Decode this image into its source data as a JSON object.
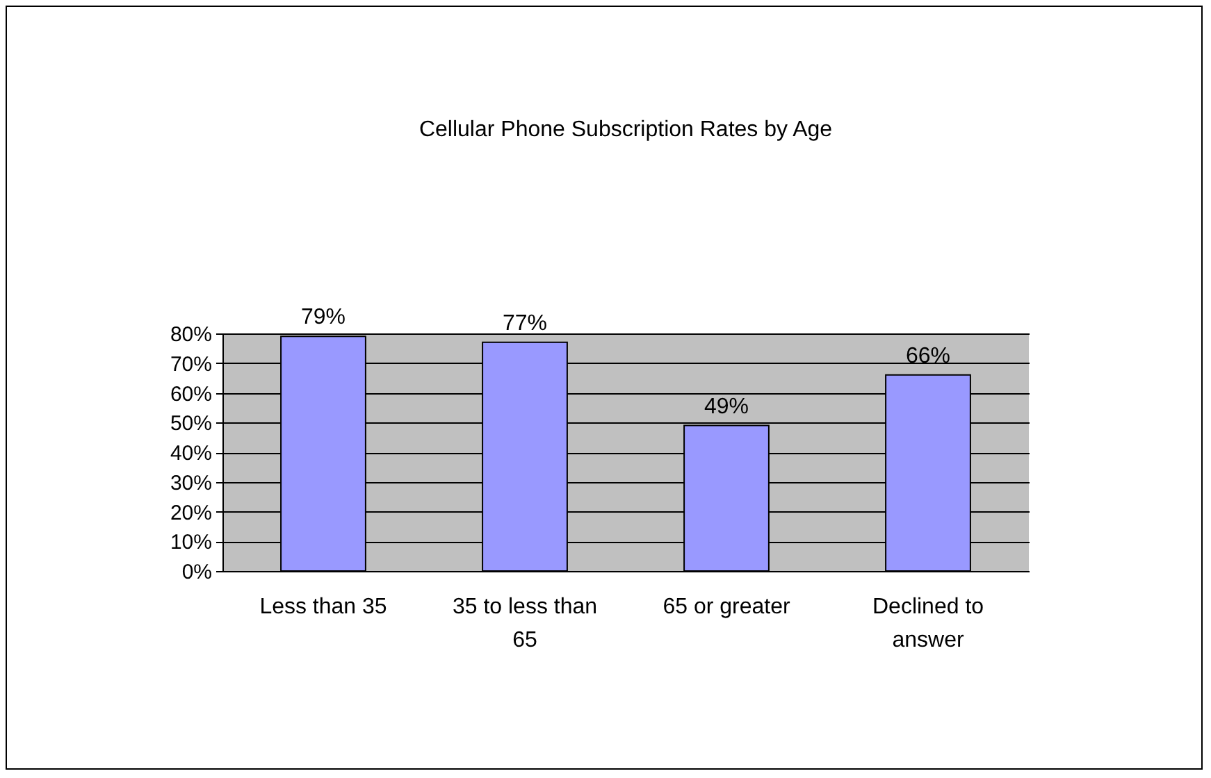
{
  "chart_data": {
    "type": "bar",
    "title": "Cellular Phone Subscription Rates by Age",
    "categories": [
      "Less than 35",
      "35 to less than 65",
      "65 or greater",
      "Declined to answer"
    ],
    "values": [
      79,
      77,
      49,
      66
    ],
    "value_labels": [
      "79%",
      "77%",
      "49%",
      "66%"
    ],
    "color": "#9999ff",
    "ylim": [
      0,
      80
    ],
    "yticks": [
      {
        "value": 0,
        "label": "0%"
      },
      {
        "value": 10,
        "label": "10%"
      },
      {
        "value": 20,
        "label": "20%"
      },
      {
        "value": 30,
        "label": "30%"
      },
      {
        "value": 40,
        "label": "40%"
      },
      {
        "value": 50,
        "label": "50%"
      },
      {
        "value": 60,
        "label": "60%"
      },
      {
        "value": 70,
        "label": "70%"
      },
      {
        "value": 80,
        "label": "80%"
      }
    ],
    "grid": "y"
  }
}
